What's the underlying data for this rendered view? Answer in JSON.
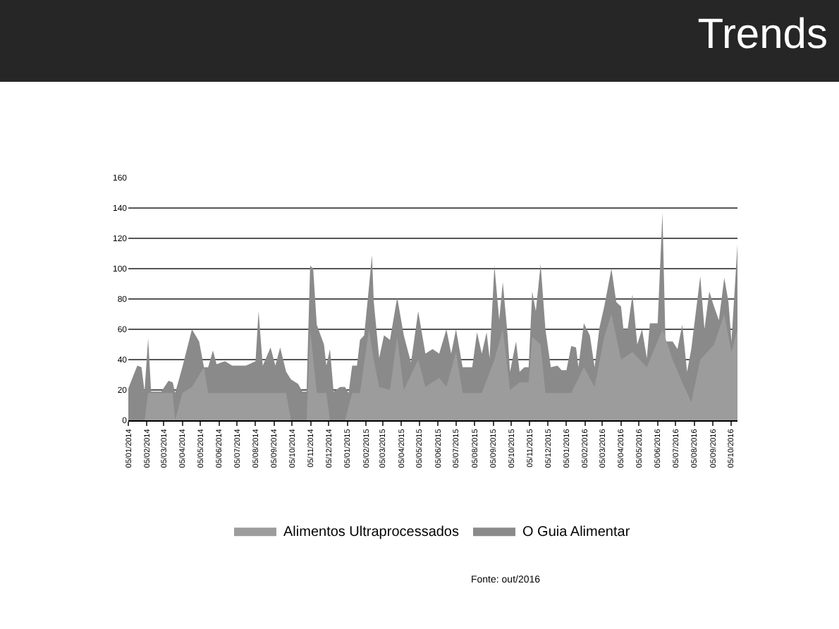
{
  "chart_data": {
    "type": "area",
    "title": "Trends",
    "annotations": [
      "Fonte: out/2016"
    ],
    "xlim": [
      "2014-01-05",
      "2016-10-16"
    ],
    "ylim": [
      0,
      160
    ],
    "yticks": [
      0,
      20,
      40,
      60,
      80,
      100,
      120,
      140,
      160
    ],
    "xticks": [
      {
        "value": "2014-01-05",
        "label": "05/01/2014"
      },
      {
        "value": "2014-02-05",
        "label": "05/02/2014"
      },
      {
        "value": "2014-03-05",
        "label": "05/03/2014"
      },
      {
        "value": "2014-04-05",
        "label": "05/04/2014"
      },
      {
        "value": "2014-05-05",
        "label": "05/05/2014"
      },
      {
        "value": "2014-06-05",
        "label": "05/06/2014"
      },
      {
        "value": "2014-07-05",
        "label": "05/07/2014"
      },
      {
        "value": "2014-08-05",
        "label": "05/08/2014"
      },
      {
        "value": "2014-09-05",
        "label": "05/09/2014"
      },
      {
        "value": "2014-10-05",
        "label": "05/10/2014"
      },
      {
        "value": "2014-11-05",
        "label": "05/11/2014"
      },
      {
        "value": "2014-12-05",
        "label": "05/12/2014"
      },
      {
        "value": "2015-01-05",
        "label": "05/01/2015"
      },
      {
        "value": "2015-02-05",
        "label": "05/02/2015"
      },
      {
        "value": "2015-03-05",
        "label": "05/03/2015"
      },
      {
        "value": "2015-04-05",
        "label": "05/04/2015"
      },
      {
        "value": "2015-05-05",
        "label": "05/05/2015"
      },
      {
        "value": "2015-06-05",
        "label": "05/06/2015"
      },
      {
        "value": "2015-07-05",
        "label": "05/07/2015"
      },
      {
        "value": "2015-08-05",
        "label": "05/08/2015"
      },
      {
        "value": "2015-09-05",
        "label": "05/09/2015"
      },
      {
        "value": "2015-10-05",
        "label": "05/10/2015"
      },
      {
        "value": "2015-11-05",
        "label": "05/11/2015"
      },
      {
        "value": "2015-12-05",
        "label": "05/12/2015"
      },
      {
        "value": "2016-01-05",
        "label": "05/01/2016"
      },
      {
        "value": "2016-02-05",
        "label": "05/02/2016"
      },
      {
        "value": "2016-03-05",
        "label": "05/03/2016"
      },
      {
        "value": "2016-04-05",
        "label": "05/04/2016"
      },
      {
        "value": "2016-05-05",
        "label": "05/05/2016"
      },
      {
        "value": "2016-06-05",
        "label": "05/06/2016"
      },
      {
        "value": "2016-07-05",
        "label": "05/07/2016"
      },
      {
        "value": "2016-08-05",
        "label": "05/08/2016"
      },
      {
        "value": "2016-09-05",
        "label": "05/09/2016"
      },
      {
        "value": "2016-10-05",
        "label": "05/10/2016"
      }
    ],
    "grid": "y",
    "legend": "bottom",
    "series": [
      {
        "name": "O Guia Alimentar",
        "color": "#8a8a8a",
        "x": [
          "2014-01-05",
          "2014-01-20",
          "2014-01-27",
          "2014-02-01",
          "2014-02-07",
          "2014-02-12",
          "2014-03-01",
          "2014-03-13",
          "2014-03-20",
          "2014-03-24",
          "2014-04-05",
          "2014-04-21",
          "2014-05-03",
          "2014-05-11",
          "2014-05-18",
          "2014-05-26",
          "2014-06-01",
          "2014-06-15",
          "2014-06-27",
          "2014-07-20",
          "2014-08-05",
          "2014-08-10",
          "2014-08-17",
          "2014-08-30",
          "2014-09-07",
          "2014-09-15",
          "2014-09-25",
          "2014-10-03",
          "2014-10-15",
          "2014-10-22",
          "2014-10-29",
          "2014-11-04",
          "2014-11-09",
          "2014-11-15",
          "2014-11-27",
          "2014-12-01",
          "2014-12-07",
          "2014-12-13",
          "2014-12-24",
          "2015-01-01",
          "2015-01-07",
          "2015-01-13",
          "2015-01-21",
          "2015-01-26",
          "2015-02-02",
          "2015-02-10",
          "2015-02-15",
          "2015-02-18",
          "2015-02-27",
          "2015-03-07",
          "2015-03-17",
          "2015-03-29",
          "2015-04-09",
          "2015-04-21",
          "2015-05-03",
          "2015-05-15",
          "2015-05-27",
          "2015-06-07",
          "2015-06-19",
          "2015-06-27",
          "2015-07-05",
          "2015-07-16",
          "2015-08-01",
          "2015-08-09",
          "2015-08-17",
          "2015-08-25",
          "2015-08-30",
          "2015-09-07",
          "2015-09-15",
          "2015-09-21",
          "2015-09-29",
          "2015-10-03",
          "2015-10-13",
          "2015-10-19",
          "2015-10-27",
          "2015-11-03",
          "2015-11-09",
          "2015-11-15",
          "2015-11-23",
          "2015-12-01",
          "2015-12-10",
          "2015-12-21",
          "2015-12-28",
          "2016-01-05",
          "2016-01-13",
          "2016-01-21",
          "2016-01-25",
          "2016-02-03",
          "2016-02-13",
          "2016-02-21",
          "2016-02-29",
          "2016-03-08",
          "2016-03-20",
          "2016-03-28",
          "2016-04-05",
          "2016-04-09",
          "2016-04-16",
          "2016-04-24",
          "2016-05-02",
          "2016-05-10",
          "2016-05-18",
          "2016-05-23",
          "2016-06-05",
          "2016-06-13",
          "2016-06-18",
          "2016-06-30",
          "2016-07-08",
          "2016-07-16",
          "2016-07-24",
          "2016-07-31",
          "2016-08-15",
          "2016-08-22",
          "2016-08-30",
          "2016-09-07",
          "2016-09-15",
          "2016-09-24",
          "2016-10-01",
          "2016-10-06",
          "2016-10-16"
        ],
        "values": [
          21,
          36,
          35,
          19,
          54,
          19,
          19,
          26,
          25,
          18,
          35,
          60,
          52,
          35,
          35,
          46,
          37,
          39,
          36,
          36,
          39,
          72,
          36,
          48,
          36,
          48,
          32,
          27,
          24,
          19,
          19,
          102,
          100,
          63,
          50,
          36,
          47,
          19,
          22,
          22,
          18,
          36,
          36,
          53,
          56,
          88,
          109,
          78,
          41,
          56,
          53,
          81,
          56,
          38,
          72,
          44,
          47,
          44,
          60,
          44,
          60,
          35,
          35,
          58,
          44,
          58,
          41,
          102,
          66,
          91,
          56,
          32,
          52,
          32,
          35,
          35,
          85,
          72,
          103,
          60,
          35,
          36,
          33,
          33,
          49,
          48,
          35,
          64,
          56,
          35,
          61,
          75,
          100,
          78,
          75,
          60,
          60,
          83,
          50,
          60,
          41,
          64,
          64,
          137,
          52,
          52,
          47,
          63,
          32,
          47,
          95,
          60,
          85,
          75,
          66,
          94,
          78,
          52,
          116
        ]
      },
      {
        "name": "Alimentos Ultraprocessados",
        "color": "#9c9c9c",
        "x": [
          "2014-01-05",
          "2014-02-01",
          "2014-02-07",
          "2014-03-20",
          "2014-03-24",
          "2014-04-05",
          "2014-04-21",
          "2014-05-11",
          "2014-05-18",
          "2014-09-25",
          "2014-10-03",
          "2014-10-29",
          "2014-11-04",
          "2014-11-15",
          "2014-12-01",
          "2014-12-07",
          "2015-01-01",
          "2015-01-13",
          "2015-01-26",
          "2015-02-10",
          "2015-02-18",
          "2015-02-27",
          "2015-03-17",
          "2015-03-29",
          "2015-04-09",
          "2015-05-03",
          "2015-05-15",
          "2015-06-07",
          "2015-06-19",
          "2015-07-05",
          "2015-07-16",
          "2015-08-17",
          "2015-09-07",
          "2015-09-21",
          "2015-10-03",
          "2015-10-19",
          "2015-11-03",
          "2015-11-09",
          "2015-11-23",
          "2015-12-01",
          "2016-01-13",
          "2016-02-03",
          "2016-02-21",
          "2016-03-08",
          "2016-03-20",
          "2016-04-05",
          "2016-04-24",
          "2016-05-18",
          "2016-06-13",
          "2016-06-30",
          "2016-07-16",
          "2016-07-31",
          "2016-08-15",
          "2016-09-07",
          "2016-09-24",
          "2016-10-06",
          "2016-10-16"
        ],
        "values": [
          0,
          0,
          18,
          18,
          0,
          18,
          22,
          35,
          18,
          18,
          0,
          0,
          60,
          18,
          18,
          0,
          0,
          18,
          18,
          60,
          40,
          22,
          20,
          55,
          20,
          40,
          22,
          28,
          22,
          45,
          18,
          18,
          40,
          60,
          20,
          25,
          25,
          55,
          50,
          18,
          18,
          35,
          22,
          55,
          70,
          40,
          45,
          35,
          60,
          40,
          25,
          12,
          40,
          50,
          70,
          45,
          60
        ]
      }
    ]
  }
}
